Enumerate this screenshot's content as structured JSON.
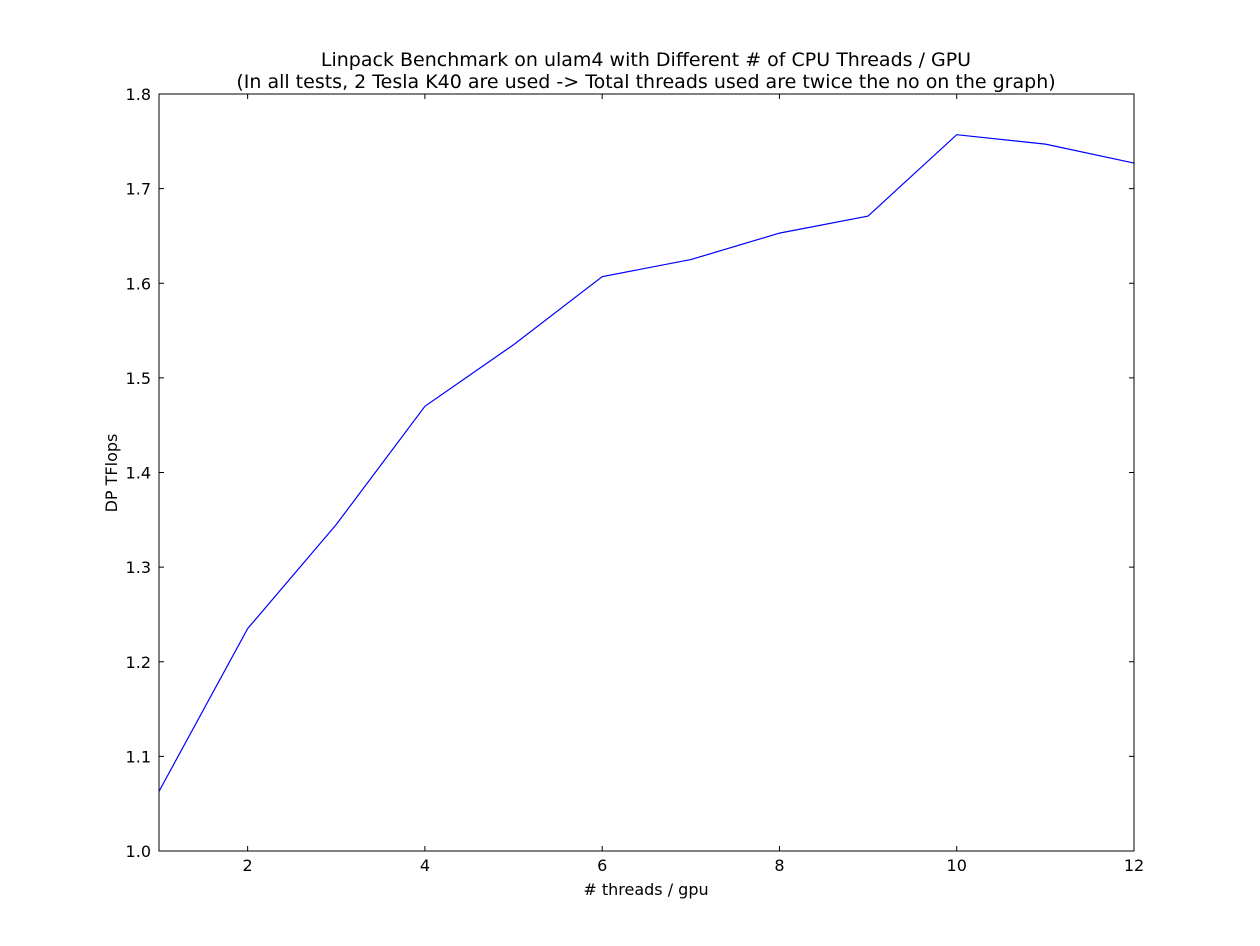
{
  "colors": {
    "background": "#ffffff",
    "axes": "#000000",
    "line": "#0000ff"
  },
  "chart_data": {
    "type": "line",
    "title": "Linpack Benchmark on ulam4 with Different # of CPU Threads / GPU",
    "subtitle": "(In all tests, 2 Tesla K40 are used -> Total threads used are twice the no on the graph)",
    "xlabel": "# threads / gpu",
    "ylabel": "DP TFlops",
    "xlim": [
      1,
      12
    ],
    "ylim": [
      1.0,
      1.8
    ],
    "x_ticks": [
      2,
      4,
      6,
      8,
      10,
      12
    ],
    "x_tick_labels": [
      "2",
      "4",
      "6",
      "8",
      "10",
      "12"
    ],
    "y_ticks": [
      1.0,
      1.1,
      1.2,
      1.3,
      1.4,
      1.5,
      1.6,
      1.7,
      1.8
    ],
    "y_tick_labels": [
      "1.0",
      "1.1",
      "1.2",
      "1.3",
      "1.4",
      "1.5",
      "1.6",
      "1.7",
      "1.8"
    ],
    "grid": false,
    "legend": "none",
    "x": [
      1,
      2,
      3,
      4,
      5,
      6,
      7,
      8,
      9,
      10,
      11,
      12
    ],
    "series": [
      {
        "values": [
          1.063,
          1.235,
          1.345,
          1.47,
          1.535,
          1.607,
          1.625,
          1.653,
          1.671,
          1.757,
          1.747,
          1.727
        ],
        "color": "#0000ff"
      }
    ]
  }
}
